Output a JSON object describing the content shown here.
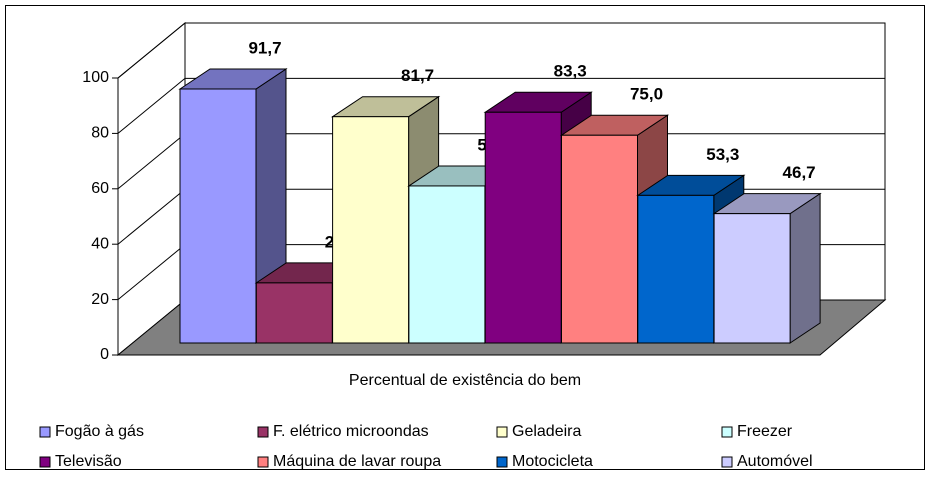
{
  "chart_data": {
    "type": "bar3d",
    "categories": [
      "Percentual de existência do bem"
    ],
    "ylim": [
      0,
      100
    ],
    "yticks": [
      0,
      20,
      40,
      60,
      80,
      100
    ],
    "grid": true,
    "series": [
      {
        "name": "Fogão à gás",
        "color": "#9999ff",
        "values": [
          91.7
        ],
        "value_labels": [
          "91,7"
        ]
      },
      {
        "name": "F. elétrico microondas",
        "color": "#993366",
        "values": [
          21.7
        ],
        "value_labels": [
          "21,7"
        ]
      },
      {
        "name": "Geladeira",
        "color": "#ffffcc",
        "values": [
          81.7
        ],
        "value_labels": [
          "81,7"
        ]
      },
      {
        "name": "Freezer",
        "color": "#ccffff",
        "values": [
          56.7
        ],
        "value_labels": [
          "56,7"
        ]
      },
      {
        "name": "Televisão",
        "color": "#800080",
        "values": [
          83.3
        ],
        "value_labels": [
          "83,3"
        ]
      },
      {
        "name": "Máquina de lavar roupa",
        "color": "#ff8080",
        "values": [
          75.0
        ],
        "value_labels": [
          "75,0"
        ]
      },
      {
        "name": "Motocicleta",
        "color": "#0066cc",
        "values": [
          53.3
        ],
        "value_labels": [
          "53,3"
        ]
      },
      {
        "name": "Automóvel",
        "color": "#ccccff",
        "values": [
          46.7
        ],
        "value_labels": [
          "46,7"
        ]
      }
    ]
  }
}
